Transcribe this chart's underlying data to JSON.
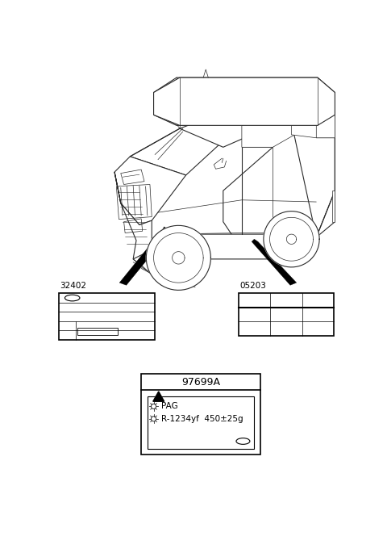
{
  "bg_color": "#ffffff",
  "line_color": "#1a1a1a",
  "car_lw": 0.7,
  "label_32402_num": "32402",
  "label_05203_num": "05203",
  "label_97699A_num": "97699A",
  "refrigerant": "R-1234yf",
  "amount": "450±25g",
  "oil": "PAG",
  "fig_w": 4.8,
  "fig_h": 6.85,
  "dpi": 100
}
